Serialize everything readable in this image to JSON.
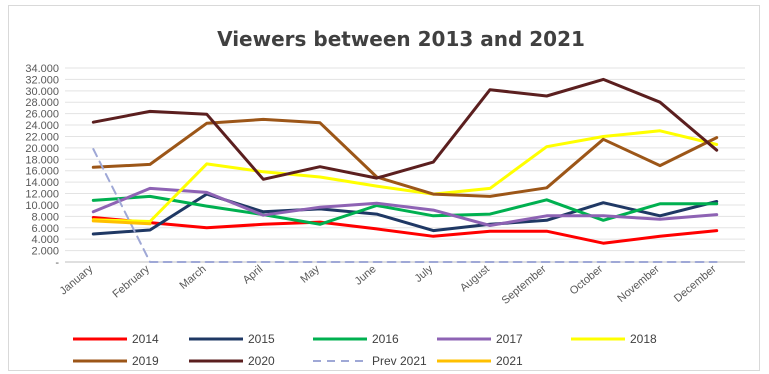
{
  "chart_data": {
    "type": "line",
    "title": "Viewers between 2013 and 2021",
    "xlabel": "",
    "ylabel": "",
    "categories": [
      "January",
      "February",
      "March",
      "April",
      "May",
      "June",
      "July",
      "August",
      "September",
      "October",
      "November",
      "December"
    ],
    "ylim": [
      0,
      34000
    ],
    "yticks": [
      "-",
      "2.000",
      "4.000",
      "6.000",
      "8.000",
      "10.000",
      "12.000",
      "14.000",
      "16.000",
      "18.000",
      "20.000",
      "22.000",
      "24.000",
      "26.000",
      "28.000",
      "30.000",
      "32.000",
      "34.000"
    ],
    "grid": true,
    "legend_position": "bottom",
    "series": [
      {
        "name": "2014",
        "color": "#ff0000",
        "dash": false,
        "values": [
          7800,
          6900,
          6000,
          6600,
          7000,
          5800,
          4500,
          5400,
          5400,
          3300,
          4500,
          5500
        ]
      },
      {
        "name": "2015",
        "color": "#1f3864",
        "dash": false,
        "values": [
          4900,
          5600,
          11900,
          8800,
          9300,
          8400,
          5500,
          6600,
          7300,
          10400,
          8100,
          10600
        ]
      },
      {
        "name": "2016",
        "color": "#00b050",
        "dash": false,
        "values": [
          10800,
          11500,
          9800,
          8300,
          6600,
          9900,
          8100,
          8400,
          10900,
          7300,
          10200,
          10200
        ]
      },
      {
        "name": "2017",
        "color": "#8e63b4",
        "dash": false,
        "values": [
          8800,
          12900,
          12200,
          8200,
          9600,
          10300,
          9100,
          6400,
          8100,
          8100,
          7500,
          8300
        ]
      },
      {
        "name": "2018",
        "color": "#ffff00",
        "dash": false,
        "values": [
          7400,
          7100,
          17200,
          15800,
          14900,
          13300,
          11900,
          12900,
          20200,
          22000,
          23000,
          20600
        ]
      },
      {
        "name": "2019",
        "color": "#9c5618",
        "dash": false,
        "values": [
          16600,
          17100,
          24300,
          25000,
          24400,
          14900,
          11900,
          11500,
          13000,
          21500,
          16900,
          21800
        ]
      },
      {
        "name": "2020",
        "color": "#5b1f1f",
        "dash": false,
        "values": [
          24500,
          26400,
          25900,
          14500,
          16700,
          14700,
          17500,
          30200,
          29100,
          32000,
          28000,
          19600
        ]
      },
      {
        "name": "Prev 2021",
        "color": "#9fa8d6",
        "dash": true,
        "values": [
          19800,
          0,
          0,
          0,
          0,
          0,
          0,
          0,
          0,
          0,
          0,
          0
        ]
      },
      {
        "name": "2021",
        "color": "#ffc000",
        "dash": false,
        "values": [
          7200,
          6700,
          null,
          null,
          null,
          null,
          null,
          null,
          null,
          null,
          null,
          null
        ]
      }
    ]
  }
}
